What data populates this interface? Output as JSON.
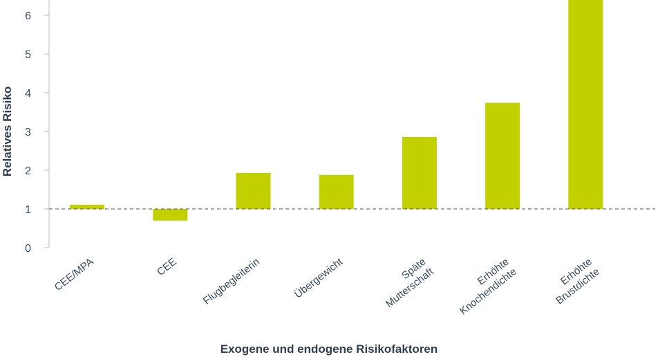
{
  "chart_data": {
    "type": "bar",
    "xlabel": "Exogene und endogene Risikofaktoren",
    "ylabel": "Relatives Risiko",
    "ylim": [
      0,
      6.4
    ],
    "yticks": [
      0,
      1,
      2,
      3,
      4,
      5,
      6
    ],
    "baseline": 1,
    "categories": [
      [
        "CEE/MPA"
      ],
      [
        "CEE"
      ],
      [
        "Flugbegleiterin"
      ],
      [
        "Übergewicht"
      ],
      [
        "Späte",
        "Mutterschaft"
      ],
      [
        "Erhöhte",
        "Knochendichte"
      ],
      [
        "Erhöhte",
        "Brustdichte"
      ]
    ],
    "values": [
      1.11,
      0.7,
      1.93,
      1.88,
      2.86,
      3.74,
      6.4
    ],
    "colors": {
      "bar": "#c3d000",
      "axis": "#b8bec4",
      "baseline": "#555555",
      "text": "#3a4a5a"
    }
  }
}
